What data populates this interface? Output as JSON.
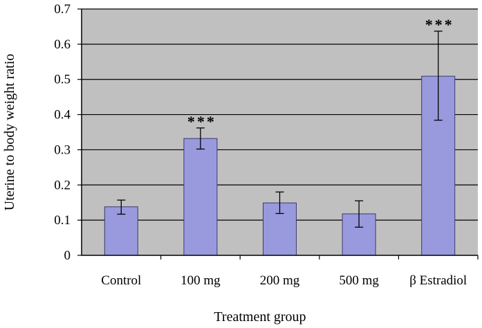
{
  "chart_data": {
    "type": "bar",
    "title": "",
    "xlabel": "Treatment group",
    "ylabel": "Uterine to body weight ratio",
    "categories": [
      "Control",
      "100 mg",
      "200 mg",
      "500 mg",
      "β Estradiol"
    ],
    "values": [
      0.138,
      0.332,
      0.149,
      0.118,
      0.509
    ],
    "error_low": [
      0.117,
      0.302,
      0.119,
      0.08,
      0.384
    ],
    "error_high": [
      0.157,
      0.362,
      0.18,
      0.155,
      0.637
    ],
    "significance": [
      "",
      "***",
      "",
      "",
      "***"
    ],
    "ylim": [
      0,
      0.7
    ],
    "yticks": [
      "0",
      "0.1",
      "0.2",
      "0.3",
      "0.4",
      "0.5",
      "0.6",
      "0.7"
    ],
    "ytick_values": [
      0,
      0.1,
      0.2,
      0.3,
      0.4,
      0.5,
      0.6,
      0.7
    ],
    "grid": true,
    "legend": "none",
    "colors": {
      "bar_fill": "#9999dd",
      "bar_stroke": "#3a3a6e",
      "plot_background": "#c0c0c0",
      "gridline": "#000000"
    }
  }
}
